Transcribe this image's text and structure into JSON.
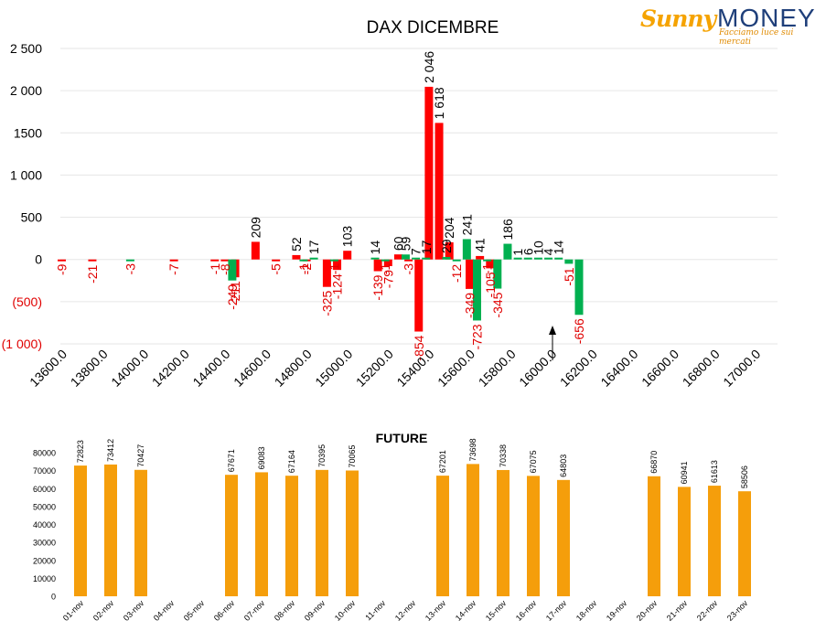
{
  "logo": {
    "sunny": "Sunny",
    "money": "MONEY",
    "tagline": "Facciamo luce sui mercati"
  },
  "colors": {
    "call": "#ff0000",
    "put": "#00b050",
    "future": "#f59e0b",
    "negative_label": "#e00000"
  },
  "chart_data": [
    {
      "type": "bar",
      "title": "DAX DICEMBRE",
      "ylim": [
        -1000,
        2500
      ],
      "y_ticks": [
        {
          "v": 2500,
          "label": "2 500"
        },
        {
          "v": 2000,
          "label": "2 000"
        },
        {
          "v": 1500,
          "label": "1500"
        },
        {
          "v": 1000,
          "label": "1 000"
        },
        {
          "v": 500,
          "label": "500"
        },
        {
          "v": 0,
          "label": "0"
        },
        {
          "v": -500,
          "label": "(500)"
        },
        {
          "v": -1000,
          "label": "(1 000)"
        }
      ],
      "grid": true,
      "categories": [
        "13600.0",
        "13650.0",
        "13700.0",
        "13750.0",
        "13800.0",
        "13850.0",
        "13900.0",
        "13950.0",
        "14000.0",
        "14050.0",
        "14100.0",
        "14150.0",
        "14200.0",
        "14250.0",
        "14300.0",
        "14350.0",
        "14400.0",
        "14450.0",
        "14500.0",
        "14550.0",
        "14600.0",
        "14650.0",
        "14700.0",
        "14750.0",
        "14800.0",
        "14850.0",
        "14900.0",
        "14950.0",
        "15000.0",
        "15050.0",
        "15100.0",
        "15150.0",
        "15200.0",
        "15250.0",
        "15300.0",
        "15350.0",
        "15400.0",
        "15450.0",
        "15500.0",
        "15550.0",
        "15600.0",
        "15650.0",
        "15700.0",
        "15750.0",
        "15800.0",
        "15850.0",
        "15900.0",
        "15950.0",
        "16000.0",
        "16050.0",
        "16100.0",
        "16150.0",
        "16200.0",
        "16250.0",
        "16300.0",
        "16350.0",
        "16400.0",
        "16450.0",
        "16500.0",
        "16550.0",
        "16600.0",
        "16650.0",
        "16700.0",
        "16750.0",
        "16800.0",
        "16850.0",
        "16900.0",
        "16950.0",
        "17000.0"
      ],
      "x_tick_labels": [
        "13600.0",
        "13800.0",
        "14000.0",
        "14200.0",
        "14400.0",
        "14600.0",
        "14800.0",
        "15000.0",
        "15200.0",
        "15400.0",
        "15600.0",
        "15800.0",
        "16000.0",
        "16200.0",
        "16400.0",
        "16600.0",
        "16800.0",
        "17000.0"
      ],
      "series": [
        {
          "color_key": "call",
          "values": [
            -9,
            null,
            null,
            -21,
            null,
            null,
            null,
            null,
            null,
            null,
            null,
            -7,
            null,
            null,
            null,
            -1,
            -8,
            -211,
            null,
            209,
            null,
            -5,
            null,
            52,
            -2,
            null,
            -325,
            -124,
            103,
            null,
            null,
            -139,
            -79,
            60,
            -3,
            -854,
            2046,
            1618,
            204,
            null,
            -349,
            41,
            -105,
            null,
            null,
            null,
            null,
            null,
            null,
            null,
            null,
            null,
            null,
            null,
            null,
            null,
            null,
            null,
            null,
            null,
            null,
            null,
            null,
            null,
            null,
            null,
            null,
            null,
            null
          ]
        },
        {
          "color_key": "put",
          "values": [
            null,
            null,
            null,
            null,
            null,
            null,
            -3,
            null,
            null,
            null,
            null,
            null,
            null,
            null,
            null,
            null,
            -249,
            null,
            null,
            null,
            null,
            null,
            null,
            -1,
            17,
            null,
            -1,
            null,
            null,
            null,
            14,
            -1,
            null,
            59,
            7,
            17,
            null,
            29,
            -12,
            241,
            -723,
            -1,
            -345,
            186,
            1,
            6,
            10,
            4,
            14,
            -51,
            -656,
            null,
            null,
            null,
            null,
            null,
            null,
            null,
            null,
            null,
            null,
            null,
            null,
            null,
            null,
            null,
            null,
            null,
            null
          ]
        }
      ],
      "labels_shown": [
        "-9",
        "-21",
        "-3",
        "-7",
        "-1",
        "-8",
        "-249",
        "-211",
        "209",
        "-5",
        "52",
        "-1",
        "-2",
        "17",
        "-325",
        "-124",
        "-1",
        "103",
        "-139",
        "14",
        "-79",
        "-1",
        "60",
        "-3",
        "59",
        "-854",
        "2 046",
        "7",
        "1 618",
        "17",
        "204",
        "29",
        "-349",
        "-12",
        "41",
        "241",
        "-105",
        "-723",
        "-1",
        "-345",
        "186",
        "1",
        "6",
        "10",
        "4",
        "14",
        "-51",
        "-656"
      ]
    },
    {
      "type": "bar",
      "title": "FUTURE",
      "ylim": [
        0,
        80000
      ],
      "y_ticks": [
        "0",
        "10000",
        "20000",
        "30000",
        "40000",
        "50000",
        "60000",
        "70000",
        "80000"
      ],
      "grid": false,
      "categories": [
        "01-nov",
        "02-nov",
        "03-nov",
        "04-nov",
        "05-nov",
        "06-nov",
        "07-nov",
        "08-nov",
        "09-nov",
        "10-nov",
        "11-nov",
        "12-nov",
        "13-nov",
        "14-nov",
        "15-nov",
        "16-nov",
        "17-nov",
        "18-nov",
        "19-nov",
        "20-nov",
        "21-nov",
        "22-nov",
        "23-nov"
      ],
      "values": [
        72823,
        73412,
        70427,
        null,
        null,
        67671,
        69083,
        67164,
        70395,
        70065,
        null,
        null,
        67201,
        73698,
        70338,
        67075,
        64803,
        null,
        null,
        66870,
        60941,
        61613,
        58506
      ],
      "value_labels": [
        "72823",
        "73412",
        "70427",
        "",
        "",
        "67671",
        "69083",
        "67164",
        "70395",
        "70065",
        "",
        "",
        "67201",
        "73698",
        "70338",
        "67075",
        "64803",
        "",
        "",
        "66870",
        "60941",
        "61613",
        "58506"
      ]
    }
  ]
}
